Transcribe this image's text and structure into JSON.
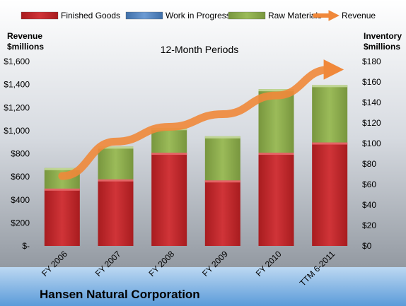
{
  "chart_data": {
    "type": "bar",
    "subtitle": "12-Month Periods",
    "company": "Hansen Natural Corporation",
    "y_left_label": [
      "Revenue",
      "$millions"
    ],
    "y_right_label": [
      "Inventory",
      "$millions"
    ],
    "categories": [
      "FY 2006",
      "FY 2007",
      "FY 2008",
      "FY 2009",
      "FY 2010",
      "TTM 6-2011"
    ],
    "y_left_ticks": [
      "$-",
      "$200",
      "$400",
      "$600",
      "$800",
      "$1,000",
      "$1,200",
      "$1,400",
      "$1,600"
    ],
    "y_right_ticks": [
      "$0",
      "$20",
      "$40",
      "$60",
      "$80",
      "$100",
      "$120",
      "$140",
      "$160",
      "$180"
    ],
    "ylim_left": [
      0,
      1600
    ],
    "ylim_right": [
      0,
      180
    ],
    "legend_position": "top",
    "series": [
      {
        "name": "Finished Goods",
        "axis": "right",
        "color": "#c0282a",
        "values": [
          56,
          65,
          91,
          64,
          91,
          101
        ]
      },
      {
        "name": "Work in Progress",
        "axis": "right",
        "color": "#4f81bd",
        "values": [
          0,
          0,
          0,
          0,
          0,
          0
        ]
      },
      {
        "name": "Raw Materials",
        "axis": "right",
        "color": "#8aa84a",
        "values": [
          20,
          32,
          24,
          43,
          62,
          56
        ]
      },
      {
        "name": "Revenue",
        "axis": "left",
        "type": "line",
        "color": "#f0883a",
        "values": [
          606,
          905,
          1033,
          1143,
          1305,
          1530
        ]
      }
    ]
  }
}
